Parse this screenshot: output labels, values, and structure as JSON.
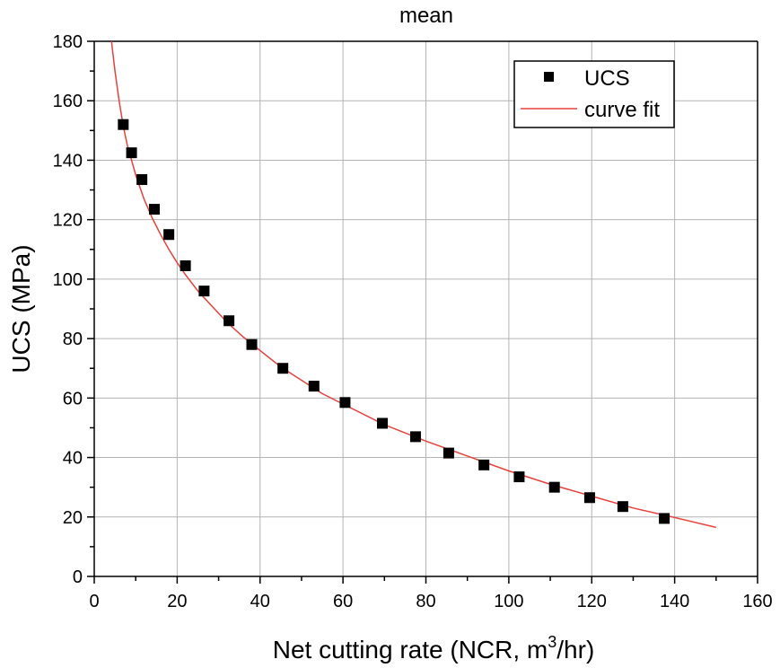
{
  "chart_data": {
    "type": "scatter",
    "title": "mean",
    "xlabel_prefix": "Net cutting rate (NCR, m",
    "xlabel_sup": "3",
    "xlabel_suffix": "/hr)",
    "ylabel": "UCS (MPa)",
    "xlim": [
      0,
      160
    ],
    "ylim": [
      0,
      180
    ],
    "xticks": [
      0,
      20,
      40,
      60,
      80,
      100,
      120,
      140,
      160
    ],
    "yticks": [
      0,
      20,
      40,
      60,
      80,
      100,
      120,
      140,
      160,
      180
    ],
    "grid": true,
    "legend_position": "top-right",
    "series": [
      {
        "name": "UCS",
        "kind": "markers",
        "marker": "square",
        "color": "#000000",
        "x": [
          7.0,
          9.0,
          11.5,
          14.5,
          18.0,
          22.0,
          26.5,
          32.5,
          38.0,
          45.5,
          53.0,
          60.5,
          69.5,
          77.5,
          85.5,
          94.0,
          102.5,
          111.0,
          119.5,
          127.5,
          137.5
        ],
        "y": [
          152,
          142.5,
          133.5,
          123.5,
          115,
          104.5,
          96,
          86,
          78,
          70,
          64,
          58.5,
          51.5,
          47,
          41.5,
          37.5,
          33.5,
          30,
          26.5,
          23.5,
          19.5
        ]
      },
      {
        "name": "curve fit",
        "kind": "line",
        "color": "#e8413c",
        "x": [
          4,
          5,
          6,
          7,
          8,
          9,
          10,
          12,
          14,
          16,
          18,
          20,
          22,
          25,
          28,
          32,
          36,
          40,
          45,
          50,
          55,
          60,
          70,
          80,
          90,
          100,
          110,
          120,
          130,
          140,
          150
        ],
        "y": [
          182,
          170,
          160,
          151.5,
          145,
          140,
          135,
          127,
          120.5,
          115,
          110,
          105.5,
          101.5,
          96,
          91.5,
          85.5,
          80.5,
          76,
          70.5,
          66,
          61.5,
          58,
          51,
          45.5,
          40.5,
          35.5,
          31,
          27,
          23,
          19.8,
          16.5
        ]
      }
    ]
  }
}
